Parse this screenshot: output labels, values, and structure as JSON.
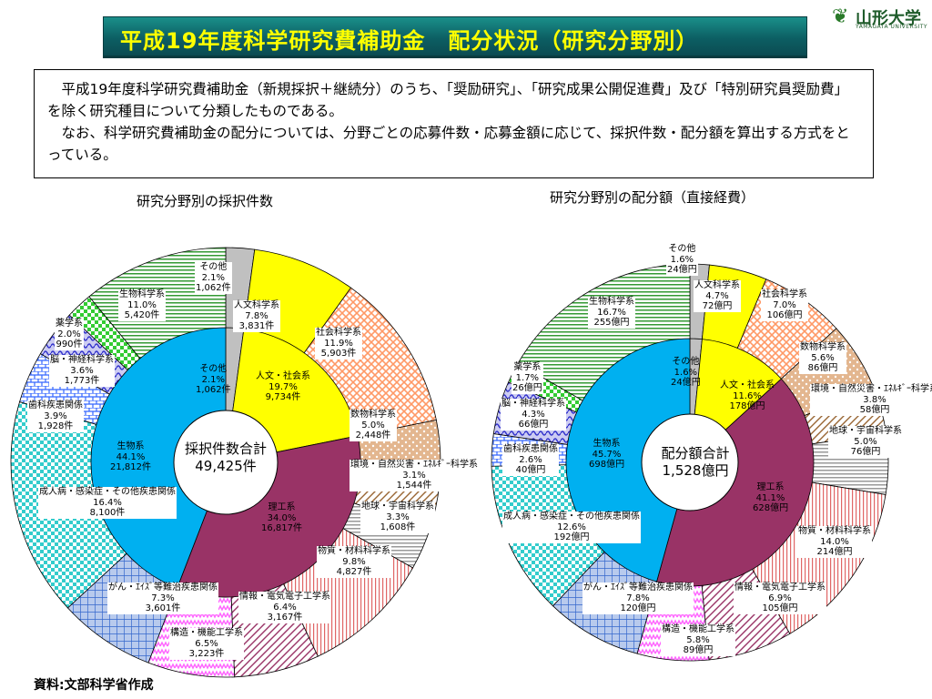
{
  "header": {
    "title": "平成19年度科学研究費補助金　配分状況（研究分野別）",
    "logo_text": "山形大学",
    "logo_sub": "YAMAGATA UNIVERSITY"
  },
  "description": {
    "p1": "平成19年度科学研究費補助金（新規採択＋継続分）のうち、「奨励研究」、「研究成果公開促進費」及び「特別研究員奨励費」を除く研究種目について分類したものである。",
    "p2": "なお、科学研究費補助金の配分については、分野ごとの応募件数・応募金額に応じて、採択件数・配分額を算出する方式をとっている。"
  },
  "source": "資料:文部科学省作成",
  "chart_data": [
    {
      "type": "pie",
      "title": "研究分野別の採択件数",
      "center_label": "採択件数合計",
      "center_value": "49,425件",
      "inner": [
        {
          "name": "その他",
          "value": 1062,
          "pct": "2.1%",
          "text": "1,062件",
          "color": "#c0c0c0"
        },
        {
          "name": "人文・社会系",
          "value": 9734,
          "pct": "19.7%",
          "text": "9,734件",
          "color": "#ffff00"
        },
        {
          "name": "理工系",
          "value": 16817,
          "pct": "34.0%",
          "text": "16,817件",
          "color": "#993366"
        },
        {
          "name": "生物系",
          "value": 21812,
          "pct": "44.1%",
          "text": "21,812件",
          "color": "#00b0f0"
        }
      ],
      "outer": [
        {
          "name": "その他",
          "value": 1062,
          "pct": "2.1%",
          "text": "1,062件",
          "color": "#c0c0c0",
          "pattern": "solid"
        },
        {
          "name": "人文科学系",
          "value": 3831,
          "pct": "7.8%",
          "text": "3,831件",
          "color": "#ffff00",
          "pattern": "solid"
        },
        {
          "name": "社会科学系",
          "value": 5903,
          "pct": "11.9%",
          "text": "5,903件",
          "color": "#ff9966",
          "pattern": "cross"
        },
        {
          "name": "数物科学系",
          "value": 2448,
          "pct": "5.0%",
          "text": "2,448件",
          "color": "#cc7a33",
          "pattern": "dots"
        },
        {
          "name": "環境・自然災害・ｴﾈﾙｷﾞｰ科学系",
          "value": 1544,
          "pct": "3.1%",
          "text": "1,544件",
          "color": "#996633",
          "pattern": "diag"
        },
        {
          "name": "地球・宇宙科学系",
          "value": 1608,
          "pct": "3.3%",
          "text": "1,608件",
          "color": "#999999",
          "pattern": "hlines"
        },
        {
          "name": "物質・材料科学系",
          "value": 4827,
          "pct": "9.8%",
          "text": "4,827件",
          "color": "#e06666",
          "pattern": "vlines"
        },
        {
          "name": "情報・電気電子工学系",
          "value": 3167,
          "pct": "6.4%",
          "text": "3,167件",
          "color": "#993366",
          "pattern": "diag"
        },
        {
          "name": "構造・機能工学系",
          "value": 3223,
          "pct": "6.5%",
          "text": "3,223件",
          "color": "#ff66ff",
          "pattern": "zigzag"
        },
        {
          "name": "がん・ｴｲｽﾞ等難治疾患関係",
          "value": 3601,
          "pct": "7.3%",
          "text": "3,601件",
          "color": "#3366cc",
          "pattern": "grid"
        },
        {
          "name": "成人病・感染症・その他疾患関係",
          "value": 8100,
          "pct": "16.4%",
          "text": "8,100件",
          "color": "#33cccc",
          "pattern": "checker"
        },
        {
          "name": "歯科疾患関係",
          "value": 1928,
          "pct": "3.9%",
          "text": "1,928件",
          "color": "#3366ff",
          "pattern": "brick"
        },
        {
          "name": "脳・神経科学系",
          "value": 1773,
          "pct": "3.6%",
          "text": "1,773件",
          "color": "#3333cc",
          "pattern": "wave"
        },
        {
          "name": "薬学系",
          "value": 990,
          "pct": "2.0%",
          "text": "990件",
          "color": "#33cc33",
          "pattern": "checker"
        },
        {
          "name": "生物科学系",
          "value": 5420,
          "pct": "11.0%",
          "text": "5,420件",
          "color": "#339933",
          "pattern": "hlines"
        }
      ]
    },
    {
      "type": "pie",
      "title": "研究分野別の配分額（直接経費）",
      "center_label": "配分額合計",
      "center_value": "1,528億円",
      "inner": [
        {
          "name": "その他",
          "value": 24,
          "pct": "1.6%",
          "text": "24億円",
          "color": "#c0c0c0"
        },
        {
          "name": "人文・社会系",
          "value": 178,
          "pct": "11.6%",
          "text": "178億円",
          "color": "#ffff00"
        },
        {
          "name": "理工系",
          "value": 628,
          "pct": "41.1%",
          "text": "628億円",
          "color": "#993366"
        },
        {
          "name": "生物系",
          "value": 698,
          "pct": "45.7%",
          "text": "698億円",
          "color": "#00b0f0"
        }
      ],
      "outer": [
        {
          "name": "その他",
          "value": 24,
          "pct": "1.6%",
          "text": "24億円",
          "color": "#c0c0c0",
          "pattern": "solid"
        },
        {
          "name": "人文科学系",
          "value": 72,
          "pct": "4.7%",
          "text": "72億円",
          "color": "#ffff00",
          "pattern": "solid"
        },
        {
          "name": "社会科学系",
          "value": 106,
          "pct": "7.0%",
          "text": "106億円",
          "color": "#ff9966",
          "pattern": "cross"
        },
        {
          "name": "数物科学系",
          "value": 86,
          "pct": "5.6%",
          "text": "86億円",
          "color": "#cc7a33",
          "pattern": "dots"
        },
        {
          "name": "環境・自然災害・ｴﾈﾙｷﾞｰ科学系",
          "value": 58,
          "pct": "3.8%",
          "text": "58億円",
          "color": "#996633",
          "pattern": "diag"
        },
        {
          "name": "地球・宇宙科学系",
          "value": 76,
          "pct": "5.0%",
          "text": "76億円",
          "color": "#999999",
          "pattern": "hlines"
        },
        {
          "name": "物質・材料科学系",
          "value": 214,
          "pct": "14.0%",
          "text": "214億円",
          "color": "#e06666",
          "pattern": "vlines"
        },
        {
          "name": "情報・電気電子工学系",
          "value": 105,
          "pct": "6.9%",
          "text": "105億円",
          "color": "#993366",
          "pattern": "diag"
        },
        {
          "name": "構造・機能工学系",
          "value": 89,
          "pct": "5.8%",
          "text": "89億円",
          "color": "#ff66ff",
          "pattern": "zigzag"
        },
        {
          "name": "がん・ｴｲｽﾞ等難治疾患関係",
          "value": 120,
          "pct": "7.8%",
          "text": "120億円",
          "color": "#3366cc",
          "pattern": "grid"
        },
        {
          "name": "成人病・感染症・その他疾患関係",
          "value": 192,
          "pct": "12.6%",
          "text": "192億円",
          "color": "#33cccc",
          "pattern": "checker"
        },
        {
          "name": "歯科疾患関係",
          "value": 40,
          "pct": "2.6%",
          "text": "40億円",
          "color": "#3366ff",
          "pattern": "brick"
        },
        {
          "name": "脳・神経科学系",
          "value": 66,
          "pct": "4.3%",
          "text": "66億円",
          "color": "#3333cc",
          "pattern": "wave"
        },
        {
          "name": "薬学系",
          "value": 26,
          "pct": "1.7%",
          "text": "26億円",
          "color": "#33cc33",
          "pattern": "checker"
        },
        {
          "name": "生物科学系",
          "value": 255,
          "pct": "16.7%",
          "text": "255億円",
          "color": "#339933",
          "pattern": "hlines"
        }
      ]
    }
  ]
}
